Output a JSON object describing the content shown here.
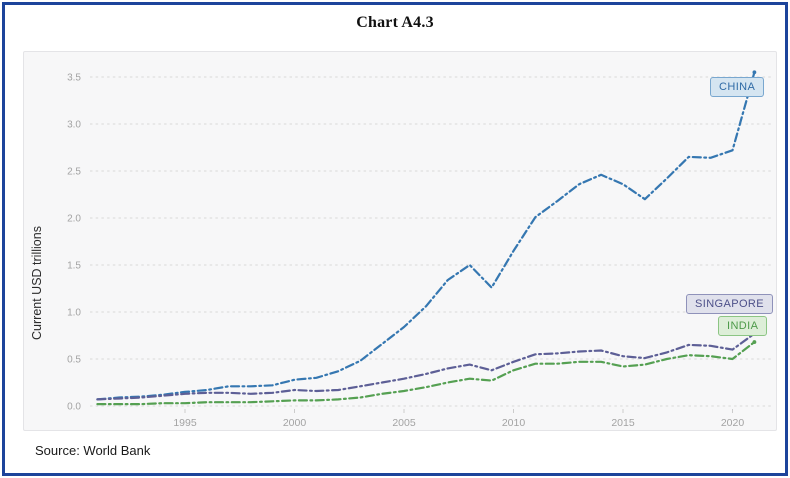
{
  "title": "Chart A4.3",
  "source_note": "Source: World Bank",
  "chart_data": {
    "type": "line",
    "title": "Chart A4.3",
    "xlabel": "",
    "ylabel": "Current USD trillions",
    "ylim": [
      0,
      3.6
    ],
    "yticks": [
      0.0,
      0.5,
      1.0,
      1.5,
      2.0,
      2.5,
      3.0,
      3.5
    ],
    "xticks": [
      1995,
      2000,
      2005,
      2010,
      2015,
      2020
    ],
    "grid": "horizontal dashed",
    "line_style": "dash-dot",
    "legend_position": "labels at line ends (right side)",
    "source": "World Bank",
    "x": [
      1991,
      1992,
      1993,
      1994,
      1995,
      1996,
      1997,
      1998,
      1999,
      2000,
      2001,
      2002,
      2003,
      2004,
      2005,
      2006,
      2007,
      2008,
      2009,
      2010,
      2011,
      2012,
      2013,
      2014,
      2015,
      2016,
      2017,
      2018,
      2019,
      2020,
      2021
    ],
    "series": [
      {
        "name": "CHINA",
        "color": "#3577b1",
        "label_bg": "#d5e5f1",
        "label_border": "#79a7cf",
        "label_text": "#2f6ba6",
        "values": [
          0.07,
          0.09,
          0.1,
          0.12,
          0.15,
          0.17,
          0.21,
          0.21,
          0.22,
          0.28,
          0.3,
          0.37,
          0.48,
          0.66,
          0.84,
          1.06,
          1.34,
          1.5,
          1.26,
          1.65,
          2.01,
          2.18,
          2.36,
          2.46,
          2.36,
          2.2,
          2.42,
          2.65,
          2.64,
          2.72,
          3.55
        ]
      },
      {
        "name": "SINGAPORE",
        "color": "#5d5f96",
        "label_bg": "#e0e1ec",
        "label_border": "#8f92ba",
        "label_text": "#4d5089",
        "values": [
          0.07,
          0.08,
          0.09,
          0.11,
          0.13,
          0.14,
          0.14,
          0.13,
          0.14,
          0.17,
          0.16,
          0.17,
          0.21,
          0.25,
          0.29,
          0.34,
          0.4,
          0.44,
          0.38,
          0.47,
          0.55,
          0.56,
          0.58,
          0.59,
          0.53,
          0.51,
          0.57,
          0.65,
          0.64,
          0.6,
          0.77
        ]
      },
      {
        "name": "INDIA",
        "color": "#55a052",
        "label_bg": "#ddeed8",
        "label_border": "#8cc584",
        "label_text": "#4d9a49",
        "values": [
          0.02,
          0.02,
          0.02,
          0.03,
          0.03,
          0.04,
          0.04,
          0.04,
          0.05,
          0.06,
          0.06,
          0.07,
          0.09,
          0.13,
          0.16,
          0.2,
          0.25,
          0.29,
          0.27,
          0.38,
          0.45,
          0.45,
          0.47,
          0.47,
          0.42,
          0.44,
          0.5,
          0.54,
          0.53,
          0.5,
          0.68
        ]
      }
    ]
  }
}
